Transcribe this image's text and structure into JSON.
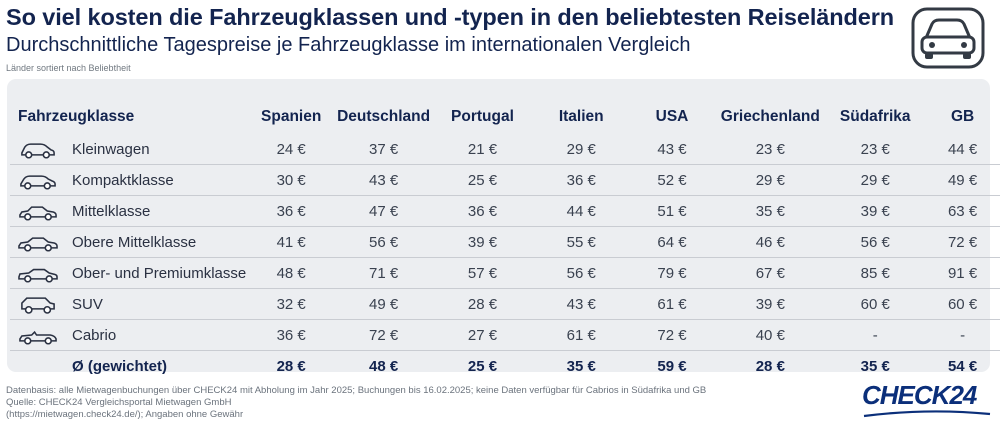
{
  "header": {
    "title": "So viel kosten die Fahrzeugklassen und -typen in den beliebtesten Reiseländern",
    "subtitle": "Durchschnittliche Tagespreise je Fahrzeugklasse im internationalen Vergleich",
    "note": "Länder sortiert nach Beliebtheit",
    "badge_icon": "car-front-icon"
  },
  "chart_data": {
    "type": "table",
    "columns": [
      "Fahrzeugklasse",
      "Spanien",
      "Deutschland",
      "Portugal",
      "Italien",
      "USA",
      "Griechenland",
      "Südafrika",
      "GB"
    ],
    "rows": [
      {
        "label": "Kleinwagen",
        "icon": "small-car-icon",
        "values": [
          "24 €",
          "37 €",
          "21 €",
          "29 €",
          "43 €",
          "23 €",
          "23 €",
          "44 €"
        ]
      },
      {
        "label": "Kompaktklasse",
        "icon": "compact-car-icon",
        "values": [
          "30 €",
          "43 €",
          "25 €",
          "36 €",
          "52 €",
          "29 €",
          "29 €",
          "49 €"
        ]
      },
      {
        "label": "Mittelklasse",
        "icon": "sedan-car-icon",
        "values": [
          "36 €",
          "47 €",
          "36 €",
          "44 €",
          "51 €",
          "35 €",
          "39 €",
          "63 €"
        ]
      },
      {
        "label": "Obere Mittelklasse",
        "icon": "upper-sedan-icon",
        "values": [
          "41 €",
          "56 €",
          "39 €",
          "55 €",
          "64 €",
          "46 €",
          "56 €",
          "72 €"
        ]
      },
      {
        "label": "Ober- und Premiumklasse",
        "icon": "premium-car-icon",
        "values": [
          "48 €",
          "71 €",
          "57 €",
          "56 €",
          "79 €",
          "67 €",
          "85 €",
          "91 €"
        ]
      },
      {
        "label": "SUV",
        "icon": "suv-icon",
        "values": [
          "32 €",
          "49 €",
          "28 €",
          "43 €",
          "61 €",
          "39 €",
          "60 €",
          "60 €"
        ]
      },
      {
        "label": "Cabrio",
        "icon": "cabrio-icon",
        "values": [
          "36 €",
          "72 €",
          "27 €",
          "61 €",
          "72 €",
          "40 €",
          "-",
          "-"
        ]
      }
    ],
    "average": {
      "label": "Ø (gewichtet)",
      "values": [
        "28 €",
        "48 €",
        "25 €",
        "35 €",
        "59 €",
        "28 €",
        "35 €",
        "54 €"
      ]
    }
  },
  "footer": {
    "line1": "Datenbasis: alle Mietwagenbuchungen über CHECK24 mit Abholung im Jahr 2025; Buchungen bis 16.02.2025; keine Daten verfügbar für Cabrios in Südafrika und GB",
    "line2": "Quelle: CHECK24 Vergleichsportal Mietwagen GmbH",
    "line3": "(https://mietwagen.check24.de/); Angaben ohne Gewähr",
    "logo": "CHECK24"
  },
  "colors": {
    "navy": "#13244f",
    "panel": "#eceef1",
    "logo": "#0b2f7a"
  }
}
